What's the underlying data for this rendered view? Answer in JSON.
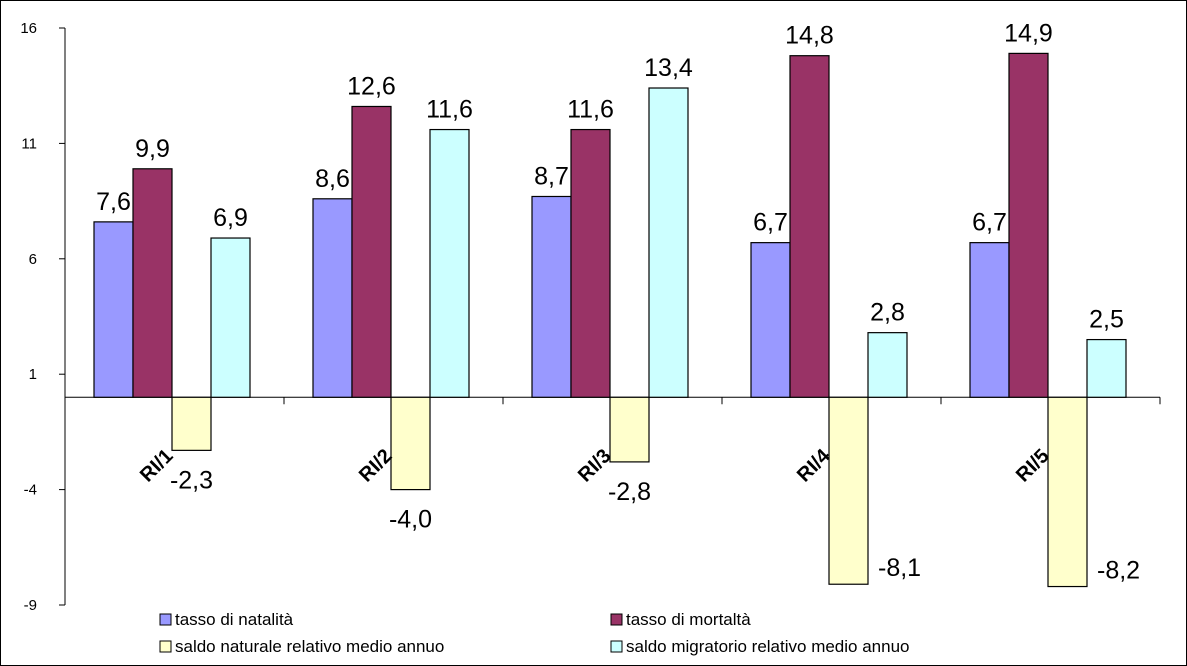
{
  "chart_data": {
    "type": "bar",
    "categories": [
      "RI/1",
      "RI/2",
      "RI/3",
      "RI/4",
      "RI/5"
    ],
    "series": [
      {
        "name": "tasso di natalità",
        "values": [
          7.6,
          8.6,
          8.7,
          6.7,
          6.7
        ],
        "labels": [
          "7,6",
          "8,6",
          "8,7",
          "6,7",
          "6,7"
        ],
        "color": "#9999FF"
      },
      {
        "name": "tasso di mortaltà",
        "values": [
          9.9,
          12.6,
          11.6,
          14.8,
          14.9
        ],
        "labels": [
          "9,9",
          "12,6",
          "11,6",
          "14,8",
          "14,9"
        ],
        "color": "#993366"
      },
      {
        "name": "saldo naturale relativo medio annuo",
        "values": [
          -2.3,
          -4.0,
          -2.8,
          -8.1,
          -8.2
        ],
        "labels": [
          "-2,3",
          "-4,0",
          "-2,8",
          "-8,1",
          "-8,2"
        ],
        "color": "#FFFFCC"
      },
      {
        "name": "saldo migratorio relativo medio annuo",
        "values": [
          6.9,
          11.6,
          13.4,
          2.8,
          2.5
        ],
        "labels": [
          "6,9",
          "11,6",
          "13,4",
          "2,8",
          "2,5"
        ],
        "color": "#CCFFFF"
      }
    ],
    "yticks": [
      16,
      11,
      6,
      1,
      -4,
      -9
    ],
    "ylim": [
      -9,
      16
    ],
    "grid": false,
    "legend": "bottom"
  }
}
